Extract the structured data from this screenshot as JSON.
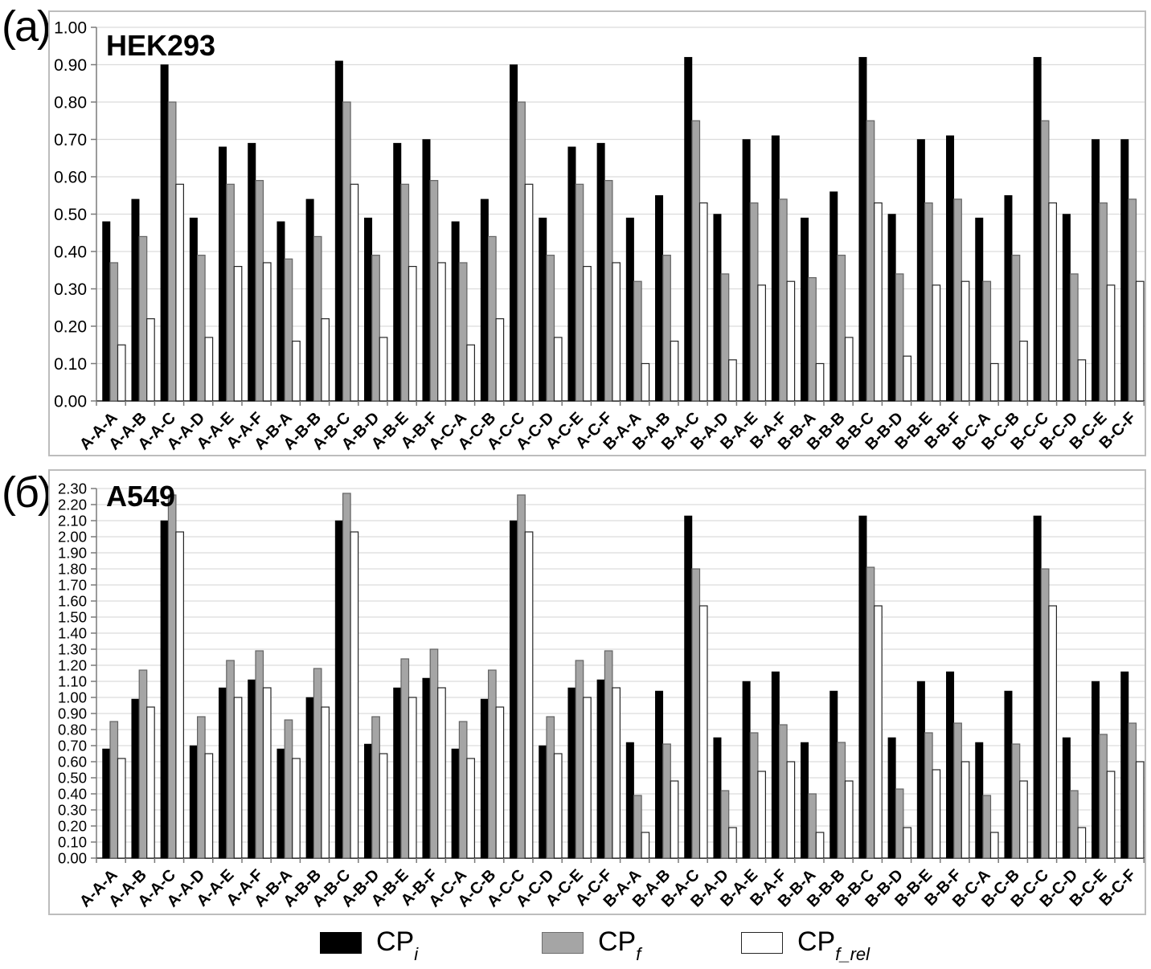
{
  "panels": [
    {
      "label": "(a)",
      "title": "HEK293"
    },
    {
      "label": "(б)",
      "title": "A549"
    }
  ],
  "legend": {
    "items": [
      {
        "label_base": "CP",
        "label_sub": "i",
        "swatch_color": "#000000",
        "swatch_border": "#000000"
      },
      {
        "label_base": "CP",
        "label_sub": "f",
        "swatch_color": "#a5a5a5",
        "swatch_border": "#6e6e6e"
      },
      {
        "label_base": "CP",
        "label_sub": "f_rel",
        "swatch_color": "#ffffff",
        "swatch_border": "#262626"
      }
    ]
  },
  "colors": {
    "bar_black": "#000000",
    "bar_gray": "#a5a5a5",
    "bar_gray_border": "#636363",
    "bar_white": "#ffffff",
    "bar_white_border": "#262626",
    "gridline": "#dcdcdc",
    "axis": "#7a7a7a",
    "baseline": "#595959",
    "panel_border": "#bdbdbd",
    "text": "#000000"
  },
  "chart_data": [
    {
      "type": "bar",
      "title": "HEK293",
      "xlabel": "",
      "ylabel": "",
      "ylim": [
        0,
        1.0
      ],
      "ytick_step": 0.1,
      "grid": true,
      "legend_position": "bottom",
      "categories": [
        "A-A-A",
        "A-A-B",
        "A-A-C",
        "A-A-D",
        "A-A-E",
        "A-A-F",
        "A-B-A",
        "A-B-B",
        "A-B-C",
        "A-B-D",
        "A-B-E",
        "A-B-F",
        "A-C-A",
        "A-C-B",
        "A-C-C",
        "A-C-D",
        "A-C-E",
        "A-C-F",
        "B-A-A",
        "B-A-B",
        "B-A-C",
        "B-A-D",
        "B-A-E",
        "B-A-F",
        "B-B-A",
        "B-B-B",
        "B-B-C",
        "B-B-D",
        "B-B-E",
        "B-B-F",
        "B-C-A",
        "B-C-B",
        "B-C-C",
        "B-C-D",
        "B-C-E",
        "B-C-F"
      ],
      "series": [
        {
          "name": "CP_i",
          "values": [
            0.48,
            0.54,
            0.9,
            0.49,
            0.68,
            0.69,
            0.48,
            0.54,
            0.91,
            0.49,
            0.69,
            0.7,
            0.48,
            0.54,
            0.9,
            0.49,
            0.68,
            0.69,
            0.49,
            0.55,
            0.92,
            0.5,
            0.7,
            0.71,
            0.49,
            0.56,
            0.92,
            0.5,
            0.7,
            0.71,
            0.49,
            0.55,
            0.92,
            0.5,
            0.7,
            0.7
          ]
        },
        {
          "name": "CP_f",
          "values": [
            0.37,
            0.44,
            0.8,
            0.39,
            0.58,
            0.59,
            0.38,
            0.44,
            0.8,
            0.39,
            0.58,
            0.59,
            0.37,
            0.44,
            0.8,
            0.39,
            0.58,
            0.59,
            0.32,
            0.39,
            0.75,
            0.34,
            0.53,
            0.54,
            0.33,
            0.39,
            0.75,
            0.34,
            0.53,
            0.54,
            0.32,
            0.39,
            0.75,
            0.34,
            0.53,
            0.54
          ]
        },
        {
          "name": "CP_f_rel",
          "values": [
            0.15,
            0.22,
            0.58,
            0.17,
            0.36,
            0.37,
            0.16,
            0.22,
            0.58,
            0.17,
            0.36,
            0.37,
            0.15,
            0.22,
            0.58,
            0.17,
            0.36,
            0.37,
            0.1,
            0.16,
            0.53,
            0.11,
            0.31,
            0.32,
            0.1,
            0.17,
            0.53,
            0.12,
            0.31,
            0.32,
            0.1,
            0.16,
            0.53,
            0.11,
            0.31,
            0.32
          ]
        }
      ]
    },
    {
      "type": "bar",
      "title": "A549",
      "xlabel": "",
      "ylabel": "",
      "ylim": [
        0,
        2.3
      ],
      "ytick_step": 0.1,
      "grid": true,
      "legend_position": "bottom",
      "categories": [
        "A-A-A",
        "A-A-B",
        "A-A-C",
        "A-A-D",
        "A-A-E",
        "A-A-F",
        "A-B-A",
        "A-B-B",
        "A-B-C",
        "A-B-D",
        "A-B-E",
        "A-B-F",
        "A-C-A",
        "A-C-B",
        "A-C-C",
        "A-C-D",
        "A-C-E",
        "A-C-F",
        "B-A-A",
        "B-A-B",
        "B-A-C",
        "B-A-D",
        "B-A-E",
        "B-A-F",
        "B-B-A",
        "B-B-B",
        "B-B-C",
        "B-B-D",
        "B-B-E",
        "B-B-F",
        "B-C-A",
        "B-C-B",
        "B-C-C",
        "B-C-D",
        "B-C-E",
        "B-C-F"
      ],
      "series": [
        {
          "name": "CP_i",
          "values": [
            0.68,
            0.99,
            2.1,
            0.7,
            1.06,
            1.11,
            0.68,
            1.0,
            2.1,
            0.71,
            1.06,
            1.12,
            0.68,
            0.99,
            2.1,
            0.7,
            1.06,
            1.11,
            0.72,
            1.04,
            2.13,
            0.75,
            1.1,
            1.16,
            0.72,
            1.04,
            2.13,
            0.75,
            1.1,
            1.16,
            0.72,
            1.04,
            2.13,
            0.75,
            1.1,
            1.16
          ]
        },
        {
          "name": "CP_f",
          "values": [
            0.85,
            1.17,
            2.26,
            0.88,
            1.23,
            1.29,
            0.86,
            1.18,
            2.27,
            0.88,
            1.24,
            1.3,
            0.85,
            1.17,
            2.26,
            0.88,
            1.23,
            1.29,
            0.39,
            0.71,
            1.8,
            0.42,
            0.78,
            0.83,
            0.4,
            0.72,
            1.81,
            0.43,
            0.78,
            0.84,
            0.39,
            0.71,
            1.8,
            0.42,
            0.77,
            0.84
          ]
        },
        {
          "name": "CP_f_rel",
          "values": [
            0.62,
            0.94,
            2.03,
            0.65,
            1.0,
            1.06,
            0.62,
            0.94,
            2.03,
            0.65,
            1.0,
            1.06,
            0.62,
            0.94,
            2.03,
            0.65,
            1.0,
            1.06,
            0.16,
            0.48,
            1.57,
            0.19,
            0.54,
            0.6,
            0.16,
            0.48,
            1.57,
            0.19,
            0.55,
            0.6,
            0.16,
            0.48,
            1.57,
            0.19,
            0.54,
            0.6
          ]
        }
      ]
    }
  ]
}
